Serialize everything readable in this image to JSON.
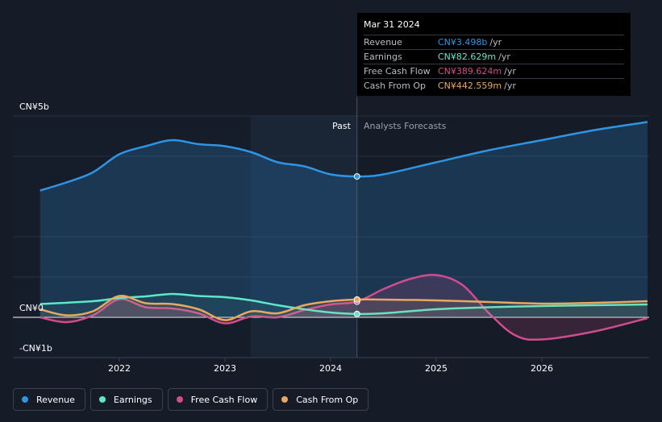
{
  "chart_data": {
    "type": "line",
    "title": "",
    "xlabel": "",
    "ylabel": "",
    "ylim": [
      -1,
      5
    ],
    "y_tick_labels": [
      "CN¥5b",
      "CN¥0",
      "-CN¥1b"
    ],
    "x_tick_labels": [
      "2022",
      "2023",
      "2024",
      "2025",
      "2026"
    ],
    "divider_labels": {
      "past": "Past",
      "forecast": "Analysts Forecasts"
    },
    "series": [
      {
        "name": "Revenue",
        "color": "#2d95e3",
        "x": [
          2021.25,
          2021.5,
          2021.75,
          2022.0,
          2022.25,
          2022.5,
          2022.75,
          2023.0,
          2023.25,
          2023.5,
          2023.75,
          2024.0,
          2024.25,
          2024.5,
          2025.0,
          2025.5,
          2026.0,
          2026.5,
          2027.0
        ],
        "values": [
          3.15,
          3.35,
          3.6,
          4.05,
          4.25,
          4.4,
          4.3,
          4.25,
          4.1,
          3.85,
          3.75,
          3.55,
          3.498,
          3.55,
          3.85,
          4.15,
          4.4,
          4.65,
          4.85
        ]
      },
      {
        "name": "Earnings",
        "color": "#5de8c9",
        "x": [
          2021.25,
          2021.75,
          2022.0,
          2022.25,
          2022.5,
          2022.75,
          2023.0,
          2023.25,
          2023.5,
          2023.75,
          2024.0,
          2024.25,
          2024.5,
          2025.0,
          2025.5,
          2026.0,
          2027.0
        ],
        "values": [
          0.33,
          0.4,
          0.48,
          0.52,
          0.58,
          0.53,
          0.5,
          0.42,
          0.3,
          0.2,
          0.12,
          0.083,
          0.1,
          0.2,
          0.25,
          0.28,
          0.32
        ]
      },
      {
        "name": "Free Cash Flow",
        "color": "#d14c8f",
        "x": [
          2021.25,
          2021.5,
          2021.75,
          2022.0,
          2022.25,
          2022.5,
          2022.75,
          2023.0,
          2023.25,
          2023.5,
          2023.75,
          2024.0,
          2024.25,
          2024.5,
          2024.75,
          2025.0,
          2025.25,
          2025.5,
          2025.75,
          2026.0,
          2026.5,
          2027.0
        ],
        "values": [
          0.0,
          -0.12,
          0.05,
          0.45,
          0.25,
          0.22,
          0.1,
          -0.15,
          0.02,
          0.0,
          0.18,
          0.32,
          0.39,
          0.7,
          0.95,
          1.05,
          0.8,
          0.1,
          -0.45,
          -0.55,
          -0.35,
          -0.02
        ]
      },
      {
        "name": "Cash From Op",
        "color": "#e8a95e",
        "x": [
          2021.25,
          2021.5,
          2021.75,
          2022.0,
          2022.25,
          2022.5,
          2022.75,
          2023.0,
          2023.25,
          2023.5,
          2023.75,
          2024.0,
          2024.25,
          2024.5,
          2025.0,
          2025.5,
          2026.0,
          2026.5,
          2027.0
        ],
        "values": [
          0.2,
          0.05,
          0.15,
          0.53,
          0.35,
          0.33,
          0.2,
          -0.07,
          0.15,
          0.1,
          0.3,
          0.4,
          0.443,
          0.44,
          0.42,
          0.38,
          0.34,
          0.36,
          0.4
        ]
      }
    ],
    "highlight_date": "Mar 31 2024"
  },
  "tooltip": {
    "date": "Mar 31 2024",
    "rows": [
      {
        "label": "Revenue",
        "value": "CN¥3.498b",
        "unit": "/yr",
        "color": "#2d95e3"
      },
      {
        "label": "Earnings",
        "value": "CN¥82.629m",
        "unit": "/yr",
        "color": "#5de8c9"
      },
      {
        "label": "Free Cash Flow",
        "value": "CN¥389.624m",
        "unit": "/yr",
        "color": "#d14c8f"
      },
      {
        "label": "Cash From Op",
        "value": "CN¥442.559m",
        "unit": "/yr",
        "color": "#e8a95e"
      }
    ]
  },
  "legend": [
    {
      "label": "Revenue",
      "color": "#2d95e3"
    },
    {
      "label": "Earnings",
      "color": "#5de8c9"
    },
    {
      "label": "Free Cash Flow",
      "color": "#d14c8f"
    },
    {
      "label": "Cash From Op",
      "color": "#e8a95e"
    }
  ]
}
